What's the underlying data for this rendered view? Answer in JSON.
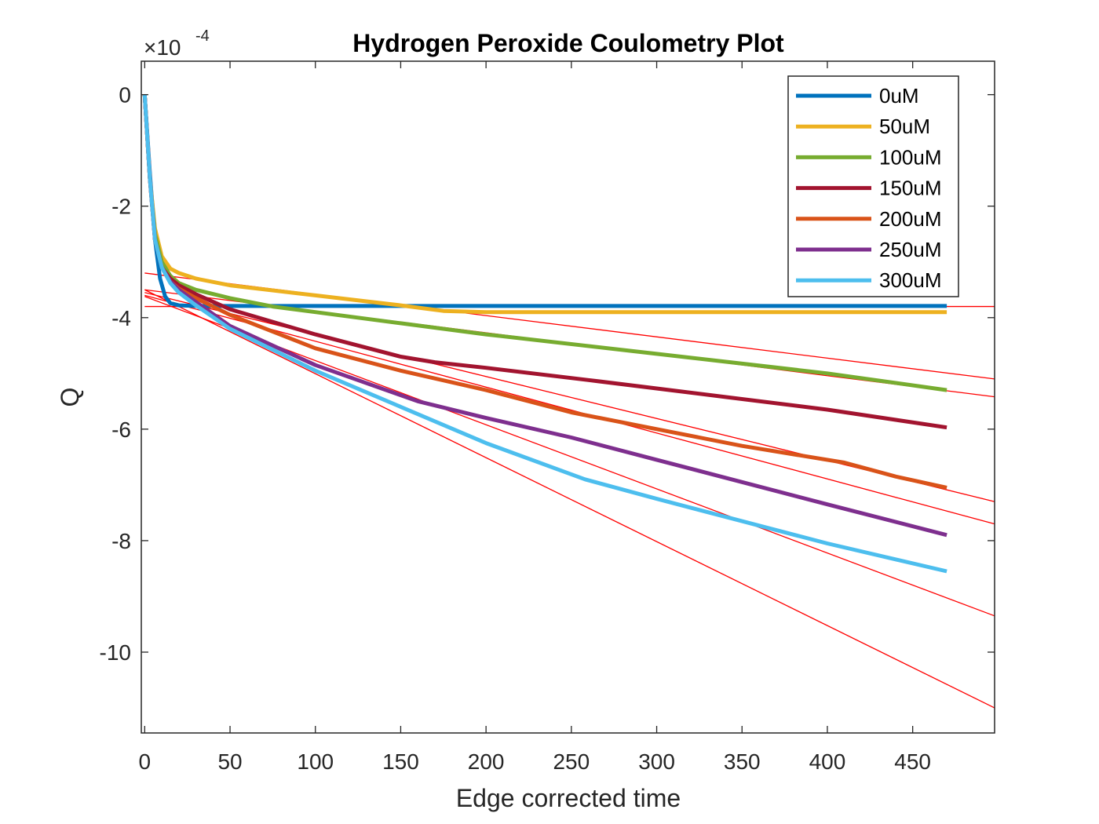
{
  "chart_data": {
    "type": "line",
    "title": "Hydrogen Peroxide Coulometry Plot",
    "xlabel": "Edge corrected time",
    "ylabel": "Q",
    "y_multiplier_label": "×10",
    "y_multiplier_exponent": "-4",
    "xlim": [
      -2,
      498
    ],
    "ylim": [
      -11.45,
      0.6
    ],
    "xticks": [
      0,
      50,
      100,
      150,
      200,
      250,
      300,
      350,
      400,
      450
    ],
    "xtick_labels": [
      "0",
      "50",
      "100",
      "150",
      "200",
      "250",
      "300",
      "350",
      "400",
      "450"
    ],
    "yticks": [
      0,
      -2,
      -4,
      -6,
      -8,
      -10
    ],
    "ytick_labels": [
      "0",
      "-2",
      "-4",
      "-6",
      "-8",
      "-10"
    ],
    "grid": false,
    "legend_position": "top-right",
    "series": [
      {
        "name": "0uM",
        "color": "#0072BD",
        "x": [
          0,
          3,
          6,
          9,
          12,
          15,
          20,
          30,
          50,
          100,
          200,
          300,
          400,
          470
        ],
        "y": [
          0,
          -1.4,
          -2.6,
          -3.3,
          -3.62,
          -3.74,
          -3.78,
          -3.79,
          -3.79,
          -3.79,
          -3.79,
          -3.79,
          -3.79,
          -3.79
        ]
      },
      {
        "name": "50uM",
        "color": "#EDB120",
        "x": [
          0,
          3,
          6,
          10,
          15,
          20,
          30,
          50,
          100,
          150,
          175,
          200,
          300,
          400,
          470
        ],
        "y": [
          0,
          -1.5,
          -2.4,
          -2.9,
          -3.12,
          -3.2,
          -3.3,
          -3.42,
          -3.6,
          -3.78,
          -3.88,
          -3.9,
          -3.9,
          -3.9,
          -3.9
        ]
      },
      {
        "name": "100uM",
        "color": "#77AC30",
        "x": [
          0,
          3,
          6,
          10,
          15,
          20,
          30,
          50,
          75,
          100,
          150,
          200,
          300,
          400,
          470
        ],
        "y": [
          0,
          -1.5,
          -2.5,
          -3.0,
          -3.25,
          -3.38,
          -3.5,
          -3.65,
          -3.8,
          -3.9,
          -4.1,
          -4.3,
          -4.65,
          -5.0,
          -5.3
        ]
      },
      {
        "name": "150uM",
        "color": "#A2142F",
        "x": [
          0,
          3,
          6,
          10,
          15,
          20,
          30,
          50,
          100,
          150,
          170,
          200,
          260,
          300,
          400,
          470
        ],
        "y": [
          0,
          -1.5,
          -2.6,
          -3.1,
          -3.3,
          -3.42,
          -3.58,
          -3.85,
          -4.3,
          -4.7,
          -4.8,
          -4.9,
          -5.12,
          -5.27,
          -5.65,
          -5.97
        ]
      },
      {
        "name": "200uM",
        "color": "#D95319",
        "x": [
          0,
          3,
          6,
          10,
          15,
          20,
          30,
          50,
          100,
          150,
          200,
          250,
          300,
          350,
          410,
          440,
          470
        ],
        "y": [
          0,
          -1.5,
          -2.6,
          -3.1,
          -3.35,
          -3.48,
          -3.65,
          -3.95,
          -4.55,
          -4.95,
          -5.3,
          -5.7,
          -6.0,
          -6.3,
          -6.6,
          -6.85,
          -7.05
        ]
      },
      {
        "name": "250uM",
        "color": "#7E2F8E",
        "x": [
          0,
          3,
          6,
          10,
          15,
          20,
          30,
          50,
          100,
          160,
          200,
          250,
          300,
          350,
          400,
          470
        ],
        "y": [
          0,
          -1.5,
          -2.6,
          -3.1,
          -3.35,
          -3.5,
          -3.72,
          -4.15,
          -4.85,
          -5.5,
          -5.8,
          -6.15,
          -6.55,
          -6.95,
          -7.35,
          -7.9
        ]
      },
      {
        "name": "300uM",
        "color": "#4DBEEE",
        "x": [
          0,
          3,
          6,
          10,
          15,
          20,
          30,
          50,
          100,
          150,
          200,
          258,
          300,
          350,
          400,
          470
        ],
        "y": [
          0,
          -1.5,
          -2.6,
          -3.1,
          -3.38,
          -3.55,
          -3.78,
          -4.2,
          -4.95,
          -5.6,
          -6.25,
          -6.9,
          -7.25,
          -7.65,
          -8.05,
          -8.55
        ]
      }
    ],
    "fit_lines": [
      {
        "color": "#FF0000",
        "x": [
          0,
          498
        ],
        "y": [
          -3.8,
          -3.8
        ]
      },
      {
        "color": "#FF0000",
        "x": [
          0,
          498
        ],
        "y": [
          -3.2,
          -5.1
        ]
      },
      {
        "color": "#FF0000",
        "x": [
          0,
          498
        ],
        "y": [
          -3.5,
          -5.42
        ]
      },
      {
        "color": "#FF0000",
        "x": [
          0,
          498
        ],
        "y": [
          -3.55,
          -7.3
        ]
      },
      {
        "color": "#FF0000",
        "x": [
          0,
          498
        ],
        "y": [
          -3.6,
          -7.7
        ]
      },
      {
        "color": "#FF0000",
        "x": [
          0,
          498
        ],
        "y": [
          -3.62,
          -9.35
        ]
      },
      {
        "color": "#FF0000",
        "x": [
          0,
          498
        ],
        "y": [
          -3.5,
          -11.0
        ]
      }
    ]
  }
}
